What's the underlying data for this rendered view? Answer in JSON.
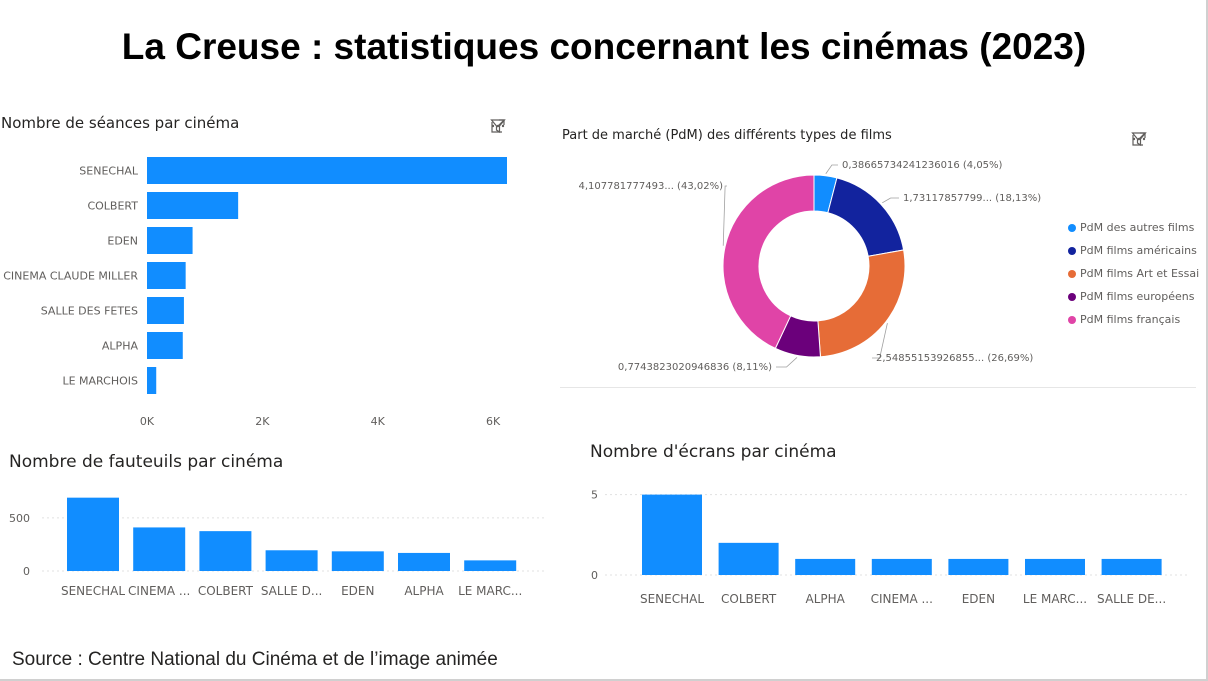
{
  "page": {
    "title": "La Creuse : statistiques concernant les cinémas (2023)",
    "source": "Source : Centre National du Cinéma et de l’image animée"
  },
  "toolbar_icons": [
    "filter-icon",
    "focus-mode-icon",
    "more-options-icon"
  ],
  "colors": {
    "bar": "#118dff",
    "grid": "#e1e1e1",
    "autres": "#118dff",
    "americains": "#12239e",
    "art_essai": "#e66c37",
    "europeens": "#6b007b",
    "francais": "#e044a7"
  },
  "chart_data": [
    {
      "id": "seances",
      "type": "bar",
      "orientation": "horizontal",
      "title": "Nombre de séances par cinéma",
      "categories": [
        "SENECHAL",
        "COLBERT",
        "EDEN",
        "CINEMA CLAUDE MILLER",
        "SALLE DES FETES",
        "ALPHA",
        "LE MARCHOIS"
      ],
      "values": [
        6240,
        1580,
        790,
        670,
        640,
        620,
        160
      ],
      "xlim": [
        0,
        6240
      ],
      "xticks": [
        0,
        2000,
        4000,
        6000
      ],
      "xtick_labels": [
        "0K",
        "2K",
        "4K",
        "6K"
      ],
      "grid": false
    },
    {
      "id": "pdm",
      "type": "pie",
      "donut": true,
      "title": "Part de marché (PdM) des différents types de films",
      "legend_position": "right",
      "slices": [
        {
          "name": "PdM des autres films",
          "value": 0.38665734241236,
          "label": "0,386657342412360​16 (4,05%)",
          "color_key": "autres"
        },
        {
          "name": "PdM films américains",
          "value": 1.73117857799,
          "label": "1,73117857799... (18,13%)",
          "color_key": "americains"
        },
        {
          "name": "PdM films Art et Essai",
          "value": 2.54855153926855,
          "label": "2,54855153926855... (26,69%)",
          "color_key": "art_essai"
        },
        {
          "name": "PdM films européens",
          "value": 0.7743823020946836,
          "label": "0,7743823020946836 (8,11%)",
          "color_key": "europeens"
        },
        {
          "name": "PdM films français",
          "value": 4.107781777493,
          "label": "4,107781777493... (43,02%)",
          "color_key": "francais"
        }
      ]
    },
    {
      "id": "fauteuils",
      "type": "bar",
      "title": "Nombre de fauteuils par cinéma",
      "categories": [
        "SENECHAL",
        "CINEMA ...",
        "COLBERT",
        "SALLE D...",
        "EDEN",
        "ALPHA",
        "LE MARC..."
      ],
      "values": [
        690,
        410,
        375,
        195,
        185,
        170,
        100
      ],
      "ylim": [
        0,
        700
      ],
      "yticks": [
        0,
        500
      ],
      "grid": true
    },
    {
      "id": "ecrans",
      "type": "bar",
      "title": "Nombre d'écrans par cinéma",
      "categories": [
        "SENECHAL",
        "COLBERT",
        "ALPHA",
        "CINEMA ...",
        "EDEN",
        "LE MARC...",
        "SALLE DE..."
      ],
      "values": [
        5,
        2,
        1,
        1,
        1,
        1,
        1
      ],
      "ylim": [
        0,
        5.1
      ],
      "yticks": [
        0,
        5
      ],
      "grid": true
    }
  ]
}
